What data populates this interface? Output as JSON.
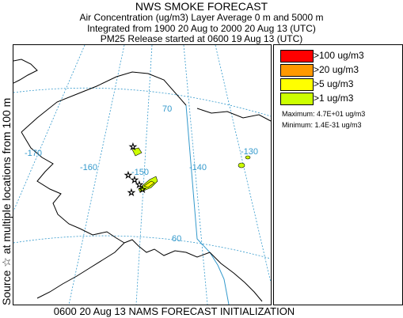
{
  "header": {
    "title": "NWS SMOKE FORECAST",
    "line2": "Air Concentration (ug/m3) Layer Average    0 m and  5000 m",
    "line3": "Integrated from 1900 20 Aug to 2000 20 Aug 13 (UTC)",
    "line4": "PM25 Release started at 0600 19 Aug 13 (UTC)"
  },
  "side_label": "Source ☆  at multiple locations  from  100 m",
  "footer": "0600 20 Aug 13 NAMS FORECAST INITIALIZATION",
  "legend": {
    "items": [
      {
        "label": ">100 ug/m3",
        "color": "#ff0000"
      },
      {
        "label": ">20 ug/m3",
        "color": "#ff9900"
      },
      {
        "label": ">5 ug/m3",
        "color": "#ffff00"
      },
      {
        "label": ">1 ug/m3",
        "color": "#ccff00"
      }
    ],
    "maximum": "Maximum: 4.7E+01 ug/m3",
    "minimum": "Minimum: 1.4E-31 ug/m3"
  },
  "map": {
    "grid_labels": {
      "lat70": "70",
      "lat60": "60",
      "lon170": "-170",
      "lon160": "-160",
      "lon150": "-150",
      "lon140": "-140",
      "lon130": "-130"
    },
    "colors": {
      "coast": "#000000",
      "grid": "#3399cc",
      "border": "#3399cc",
      "smoke_light": "#ccff00",
      "smoke_yellow": "#ffff00"
    },
    "source_marker": "star-icon"
  }
}
